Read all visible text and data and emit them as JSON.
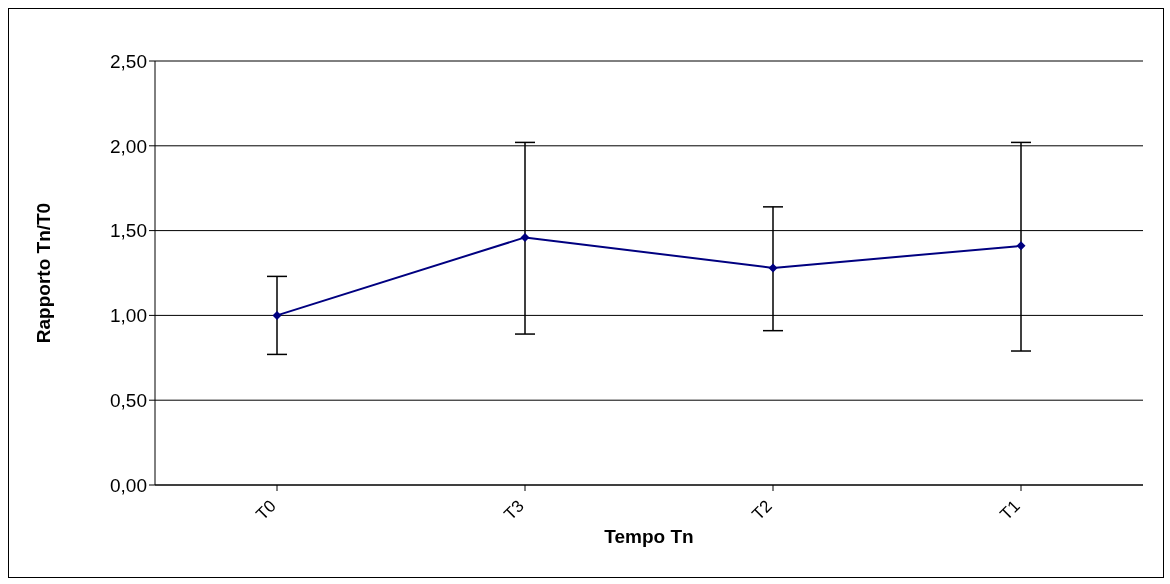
{
  "chart_data": {
    "type": "line",
    "xlabel": "Tempo Tn",
    "ylabel": "Rapporto Tn/T0",
    "categories": [
      "T0",
      "T3",
      "T2",
      "T1"
    ],
    "series": [
      {
        "color": "#000080",
        "values": [
          1.0,
          1.46,
          1.28,
          1.41
        ],
        "errors": [
          [
            0.77,
            1.23
          ],
          [
            0.89,
            2.02
          ],
          [
            0.91,
            1.64
          ],
          [
            0.79,
            2.02
          ]
        ]
      }
    ],
    "ylim": [
      0,
      2.5
    ],
    "yticks": [
      {
        "value": 0,
        "label": "0,00"
      },
      {
        "value": 0.5,
        "label": "0,50"
      },
      {
        "value": 1,
        "label": "1,00"
      },
      {
        "value": 1.5,
        "label": "1,50"
      },
      {
        "value": 2,
        "label": "2,00"
      },
      {
        "value": 2.5,
        "label": "2,50"
      }
    ],
    "grid": "y",
    "legend": false,
    "marker": "diamond",
    "line_style": "solid"
  }
}
